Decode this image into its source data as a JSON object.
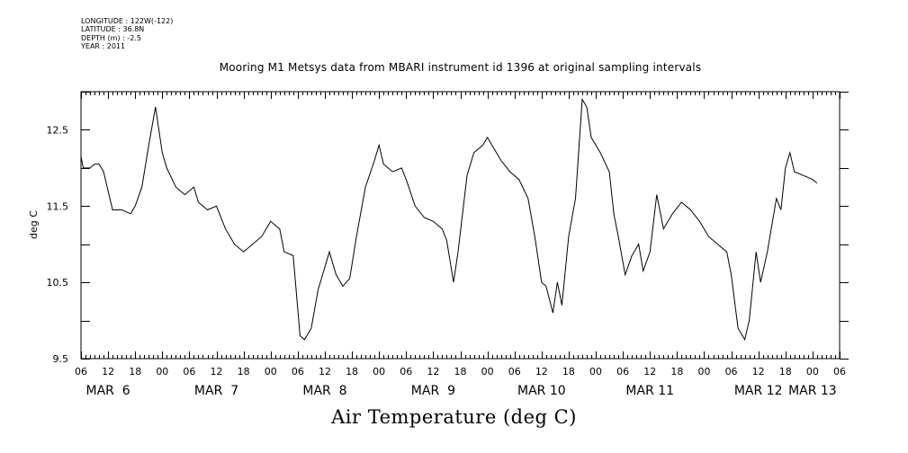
{
  "header": {
    "longitude": "LONGITUDE : 122W(-122)",
    "latitude": "LATITUDE : 36.8N",
    "depth": "DEPTH (m) : -2.5",
    "year": "YEAR : 2011"
  },
  "chart_data": {
    "type": "line",
    "title": "Mooring M1 Metsys data from MBARI instrument id 1396 at original sampling intervals",
    "xlabel": "Air Temperature (deg C)",
    "ylabel": "deg C",
    "ylim": [
      9.5,
      13.0
    ],
    "yticks": [
      "9.5",
      "10.5",
      "11.5",
      "12.5"
    ],
    "xlim": [
      "2011-03-06T06:00",
      "2011-03-13T06:00"
    ],
    "hour_tick_labels": [
      "06",
      "12",
      "18",
      "00",
      "06",
      "12",
      "18",
      "00",
      "06",
      "12",
      "18",
      "00",
      "06",
      "12",
      "18",
      "00",
      "06",
      "12",
      "18",
      "00",
      "06",
      "12",
      "18",
      "00",
      "06",
      "12",
      "18",
      "00",
      "06"
    ],
    "day_labels": [
      {
        "label": "MAR  6",
        "date": "2011-03-06T12:00"
      },
      {
        "label": "MAR  7",
        "date": "2011-03-07T12:00"
      },
      {
        "label": "MAR  8",
        "date": "2011-03-08T12:00"
      },
      {
        "label": "MAR  9",
        "date": "2011-03-09T12:00"
      },
      {
        "label": "MAR 10",
        "date": "2011-03-10T12:00"
      },
      {
        "label": "MAR 11",
        "date": "2011-03-11T12:00"
      },
      {
        "label": "MAR 12",
        "date": "2011-03-12T12:00"
      },
      {
        "label": "MAR 13",
        "date": "2011-03-13T00:00"
      }
    ],
    "grid": false,
    "series": [
      {
        "color": "#000000",
        "points": [
          [
            "2011-03-06T06:00",
            12.15
          ],
          [
            "2011-03-06T06:30",
            12.0
          ],
          [
            "2011-03-06T08:00",
            12.0
          ],
          [
            "2011-03-06T09:00",
            12.05
          ],
          [
            "2011-03-06T10:00",
            12.05
          ],
          [
            "2011-03-06T11:00",
            11.95
          ],
          [
            "2011-03-06T12:00",
            11.7
          ],
          [
            "2011-03-06T13:00",
            11.45
          ],
          [
            "2011-03-06T15:00",
            11.45
          ],
          [
            "2011-03-06T17:00",
            11.4
          ],
          [
            "2011-03-06T18:00",
            11.5
          ],
          [
            "2011-03-06T19:30",
            11.75
          ],
          [
            "2011-03-06T21:00",
            12.3
          ],
          [
            "2011-03-06T22:30",
            12.8
          ],
          [
            "2011-03-06T23:00",
            12.6
          ],
          [
            "2011-03-07T00:00",
            12.2
          ],
          [
            "2011-03-07T01:00",
            12.0
          ],
          [
            "2011-03-07T03:00",
            11.75
          ],
          [
            "2011-03-07T05:00",
            11.65
          ],
          [
            "2011-03-07T07:00",
            11.75
          ],
          [
            "2011-03-07T08:00",
            11.55
          ],
          [
            "2011-03-07T10:00",
            11.45
          ],
          [
            "2011-03-07T12:00",
            11.5
          ],
          [
            "2011-03-07T14:00",
            11.2
          ],
          [
            "2011-03-07T16:00",
            11.0
          ],
          [
            "2011-03-07T18:00",
            10.9
          ],
          [
            "2011-03-07T20:00",
            11.0
          ],
          [
            "2011-03-07T22:00",
            11.1
          ],
          [
            "2011-03-08T00:00",
            11.3
          ],
          [
            "2011-03-08T02:00",
            11.2
          ],
          [
            "2011-03-08T03:00",
            10.9
          ],
          [
            "2011-03-08T05:00",
            10.85
          ],
          [
            "2011-03-08T06:30",
            9.8
          ],
          [
            "2011-03-08T07:30",
            9.75
          ],
          [
            "2011-03-08T09:00",
            9.9
          ],
          [
            "2011-03-08T10:30",
            10.4
          ],
          [
            "2011-03-08T12:00",
            10.7
          ],
          [
            "2011-03-08T13:00",
            10.9
          ],
          [
            "2011-03-08T14:30",
            10.6
          ],
          [
            "2011-03-08T16:00",
            10.45
          ],
          [
            "2011-03-08T17:30",
            10.55
          ],
          [
            "2011-03-08T19:00",
            11.1
          ],
          [
            "2011-03-08T21:00",
            11.75
          ],
          [
            "2011-03-08T23:00",
            12.1
          ],
          [
            "2011-03-09T00:00",
            12.3
          ],
          [
            "2011-03-09T01:00",
            12.05
          ],
          [
            "2011-03-09T03:00",
            11.95
          ],
          [
            "2011-03-09T05:00",
            12.0
          ],
          [
            "2011-03-09T06:00",
            11.85
          ],
          [
            "2011-03-09T08:00",
            11.5
          ],
          [
            "2011-03-09T10:00",
            11.35
          ],
          [
            "2011-03-09T12:00",
            11.3
          ],
          [
            "2011-03-09T14:00",
            11.2
          ],
          [
            "2011-03-09T15:00",
            11.05
          ],
          [
            "2011-03-09T16:30",
            10.5
          ],
          [
            "2011-03-09T17:30",
            10.9
          ],
          [
            "2011-03-09T18:30",
            11.4
          ],
          [
            "2011-03-09T19:30",
            11.9
          ],
          [
            "2011-03-09T21:00",
            12.2
          ],
          [
            "2011-03-09T23:00",
            12.3
          ],
          [
            "2011-03-10T00:00",
            12.4
          ],
          [
            "2011-03-10T01:00",
            12.3
          ],
          [
            "2011-03-10T03:00",
            12.1
          ],
          [
            "2011-03-10T05:00",
            11.95
          ],
          [
            "2011-03-10T07:00",
            11.85
          ],
          [
            "2011-03-10T09:00",
            11.6
          ],
          [
            "2011-03-10T10:30",
            11.1
          ],
          [
            "2011-03-10T12:00",
            10.5
          ],
          [
            "2011-03-10T13:00",
            10.45
          ],
          [
            "2011-03-10T14:30",
            10.1
          ],
          [
            "2011-03-10T15:30",
            10.5
          ],
          [
            "2011-03-10T16:30",
            10.2
          ],
          [
            "2011-03-10T18:00",
            11.1
          ],
          [
            "2011-03-10T19:30",
            11.6
          ],
          [
            "2011-03-10T21:00",
            12.9
          ],
          [
            "2011-03-10T22:00",
            12.8
          ],
          [
            "2011-03-10T23:00",
            12.4
          ],
          [
            "2011-03-11T01:00",
            12.2
          ],
          [
            "2011-03-11T03:00",
            11.95
          ],
          [
            "2011-03-11T04:00",
            11.4
          ],
          [
            "2011-03-11T05:00",
            11.1
          ],
          [
            "2011-03-11T06:30",
            10.6
          ],
          [
            "2011-03-11T08:00",
            10.85
          ],
          [
            "2011-03-11T09:30",
            11.0
          ],
          [
            "2011-03-11T10:30",
            10.65
          ],
          [
            "2011-03-11T12:00",
            10.9
          ],
          [
            "2011-03-11T13:30",
            11.65
          ],
          [
            "2011-03-11T15:00",
            11.2
          ],
          [
            "2011-03-11T17:00",
            11.4
          ],
          [
            "2011-03-11T19:00",
            11.55
          ],
          [
            "2011-03-11T21:00",
            11.45
          ],
          [
            "2011-03-11T23:00",
            11.3
          ],
          [
            "2011-03-12T01:00",
            11.1
          ],
          [
            "2011-03-12T03:00",
            11.0
          ],
          [
            "2011-03-12T05:00",
            10.9
          ],
          [
            "2011-03-12T06:00",
            10.6
          ],
          [
            "2011-03-12T07:30",
            9.9
          ],
          [
            "2011-03-12T09:00",
            9.75
          ],
          [
            "2011-03-12T10:00",
            10.0
          ],
          [
            "2011-03-12T11:30",
            10.9
          ],
          [
            "2011-03-12T12:30",
            10.5
          ],
          [
            "2011-03-12T14:00",
            10.9
          ],
          [
            "2011-03-12T16:00",
            11.6
          ],
          [
            "2011-03-12T17:00",
            11.45
          ],
          [
            "2011-03-12T18:00",
            12.0
          ],
          [
            "2011-03-12T19:00",
            12.2
          ],
          [
            "2011-03-12T20:00",
            11.95
          ],
          [
            "2011-03-12T22:00",
            11.9
          ],
          [
            "2011-03-13T00:00",
            11.85
          ],
          [
            "2011-03-13T01:00",
            11.8
          ]
        ]
      }
    ]
  }
}
